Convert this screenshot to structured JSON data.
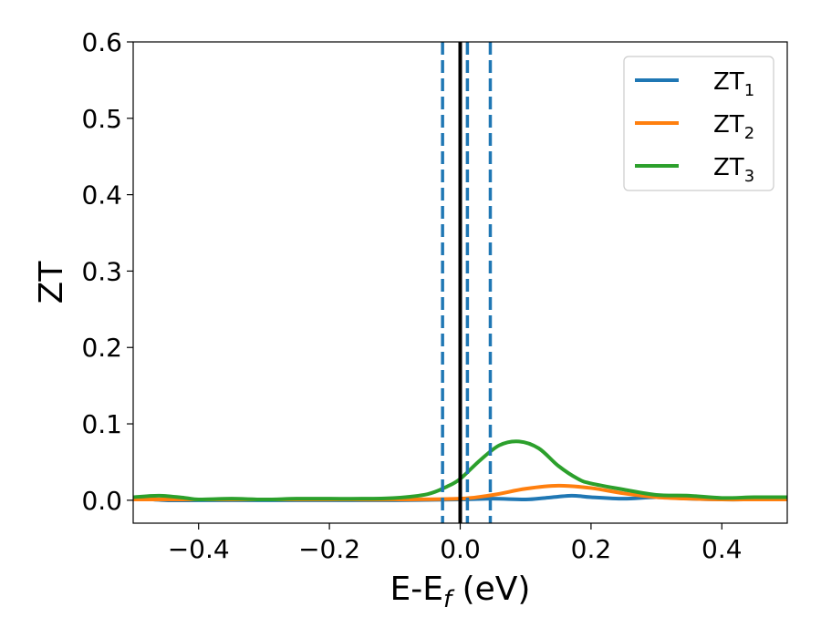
{
  "chart_data": {
    "type": "line",
    "xlabel": {
      "main": "E-E",
      "sub": "f",
      "unit": " (eV)"
    },
    "ylabel": "ZT",
    "xlim": [
      -0.5,
      0.5
    ],
    "ylim": [
      -0.03,
      0.6
    ],
    "xticks": [
      -0.4,
      -0.2,
      0.0,
      0.2,
      0.4
    ],
    "xtick_labels": [
      "−0.4",
      "−0.2",
      "0.0",
      "0.2",
      "0.4"
    ],
    "yticks": [
      0.0,
      0.1,
      0.2,
      0.3,
      0.4,
      0.5,
      0.6
    ],
    "ytick_labels": [
      "0.0",
      "0.1",
      "0.2",
      "0.3",
      "0.4",
      "0.5",
      "0.6"
    ],
    "grid": false,
    "legend_position": "top-right",
    "series": [
      {
        "name": "ZT",
        "sub": "1",
        "color": "#1f77b4",
        "x": [
          -0.5,
          -0.45,
          -0.4,
          -0.3,
          -0.2,
          -0.1,
          0.0,
          0.05,
          0.1,
          0.13,
          0.17,
          0.2,
          0.25,
          0.3,
          0.35,
          0.4,
          0.45,
          0.5
        ],
        "y": [
          0.003,
          0.0,
          0.0,
          0.0,
          0.0,
          0.0,
          0.001,
          0.002,
          0.001,
          0.003,
          0.006,
          0.004,
          0.002,
          0.004,
          0.002,
          0.001,
          0.001,
          0.001
        ]
      },
      {
        "name": "ZT",
        "sub": "2",
        "color": "#ff7f0e",
        "x": [
          -0.5,
          -0.4,
          -0.3,
          -0.2,
          -0.1,
          0.0,
          0.05,
          0.1,
          0.15,
          0.2,
          0.25,
          0.3,
          0.35,
          0.4,
          0.45,
          0.5
        ],
        "y": [
          0.001,
          0.001,
          0.001,
          0.001,
          0.001,
          0.002,
          0.007,
          0.015,
          0.019,
          0.016,
          0.009,
          0.004,
          0.002,
          0.001,
          0.001,
          0.001
        ]
      },
      {
        "name": "ZT",
        "sub": "3",
        "color": "#2ca02c",
        "x": [
          -0.5,
          -0.46,
          -0.42,
          -0.4,
          -0.35,
          -0.3,
          -0.25,
          -0.2,
          -0.15,
          -0.1,
          -0.05,
          -0.02,
          0.0,
          0.03,
          0.06,
          0.09,
          0.12,
          0.15,
          0.18,
          0.2,
          0.25,
          0.3,
          0.35,
          0.4,
          0.45,
          0.5
        ],
        "y": [
          0.004,
          0.006,
          0.003,
          0.001,
          0.002,
          0.001,
          0.002,
          0.002,
          0.002,
          0.003,
          0.008,
          0.018,
          0.028,
          0.052,
          0.072,
          0.077,
          0.068,
          0.045,
          0.028,
          0.022,
          0.014,
          0.007,
          0.006,
          0.003,
          0.004,
          0.004
        ]
      }
    ],
    "vlines": [
      {
        "x": 0.0,
        "style": "solid",
        "color": "#000000"
      },
      {
        "x": -0.027,
        "style": "dashed",
        "color": "#1f77b4"
      },
      {
        "x": 0.011,
        "style": "dashed",
        "color": "#1f77b4"
      },
      {
        "x": 0.046,
        "style": "dashed",
        "color": "#1f77b4"
      }
    ]
  }
}
